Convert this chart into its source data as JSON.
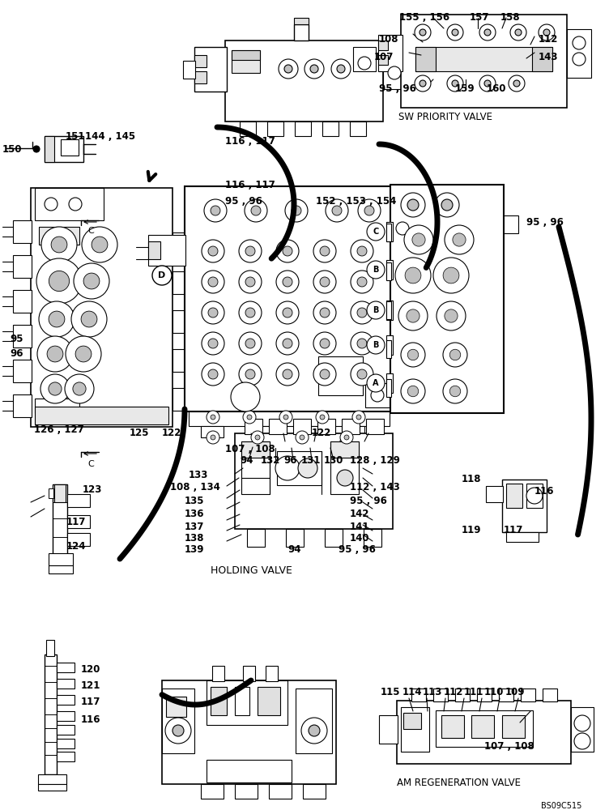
{
  "background_color": "#ffffff",
  "fig_width": 7.52,
  "fig_height": 10.0,
  "dpi": 100,
  "watermark": "BS09C515",
  "title_sw": "SW PRIORITY VALVE",
  "title_hv": "HOLDING VALVE",
  "title_am": "AM REGENERATION VALVE"
}
